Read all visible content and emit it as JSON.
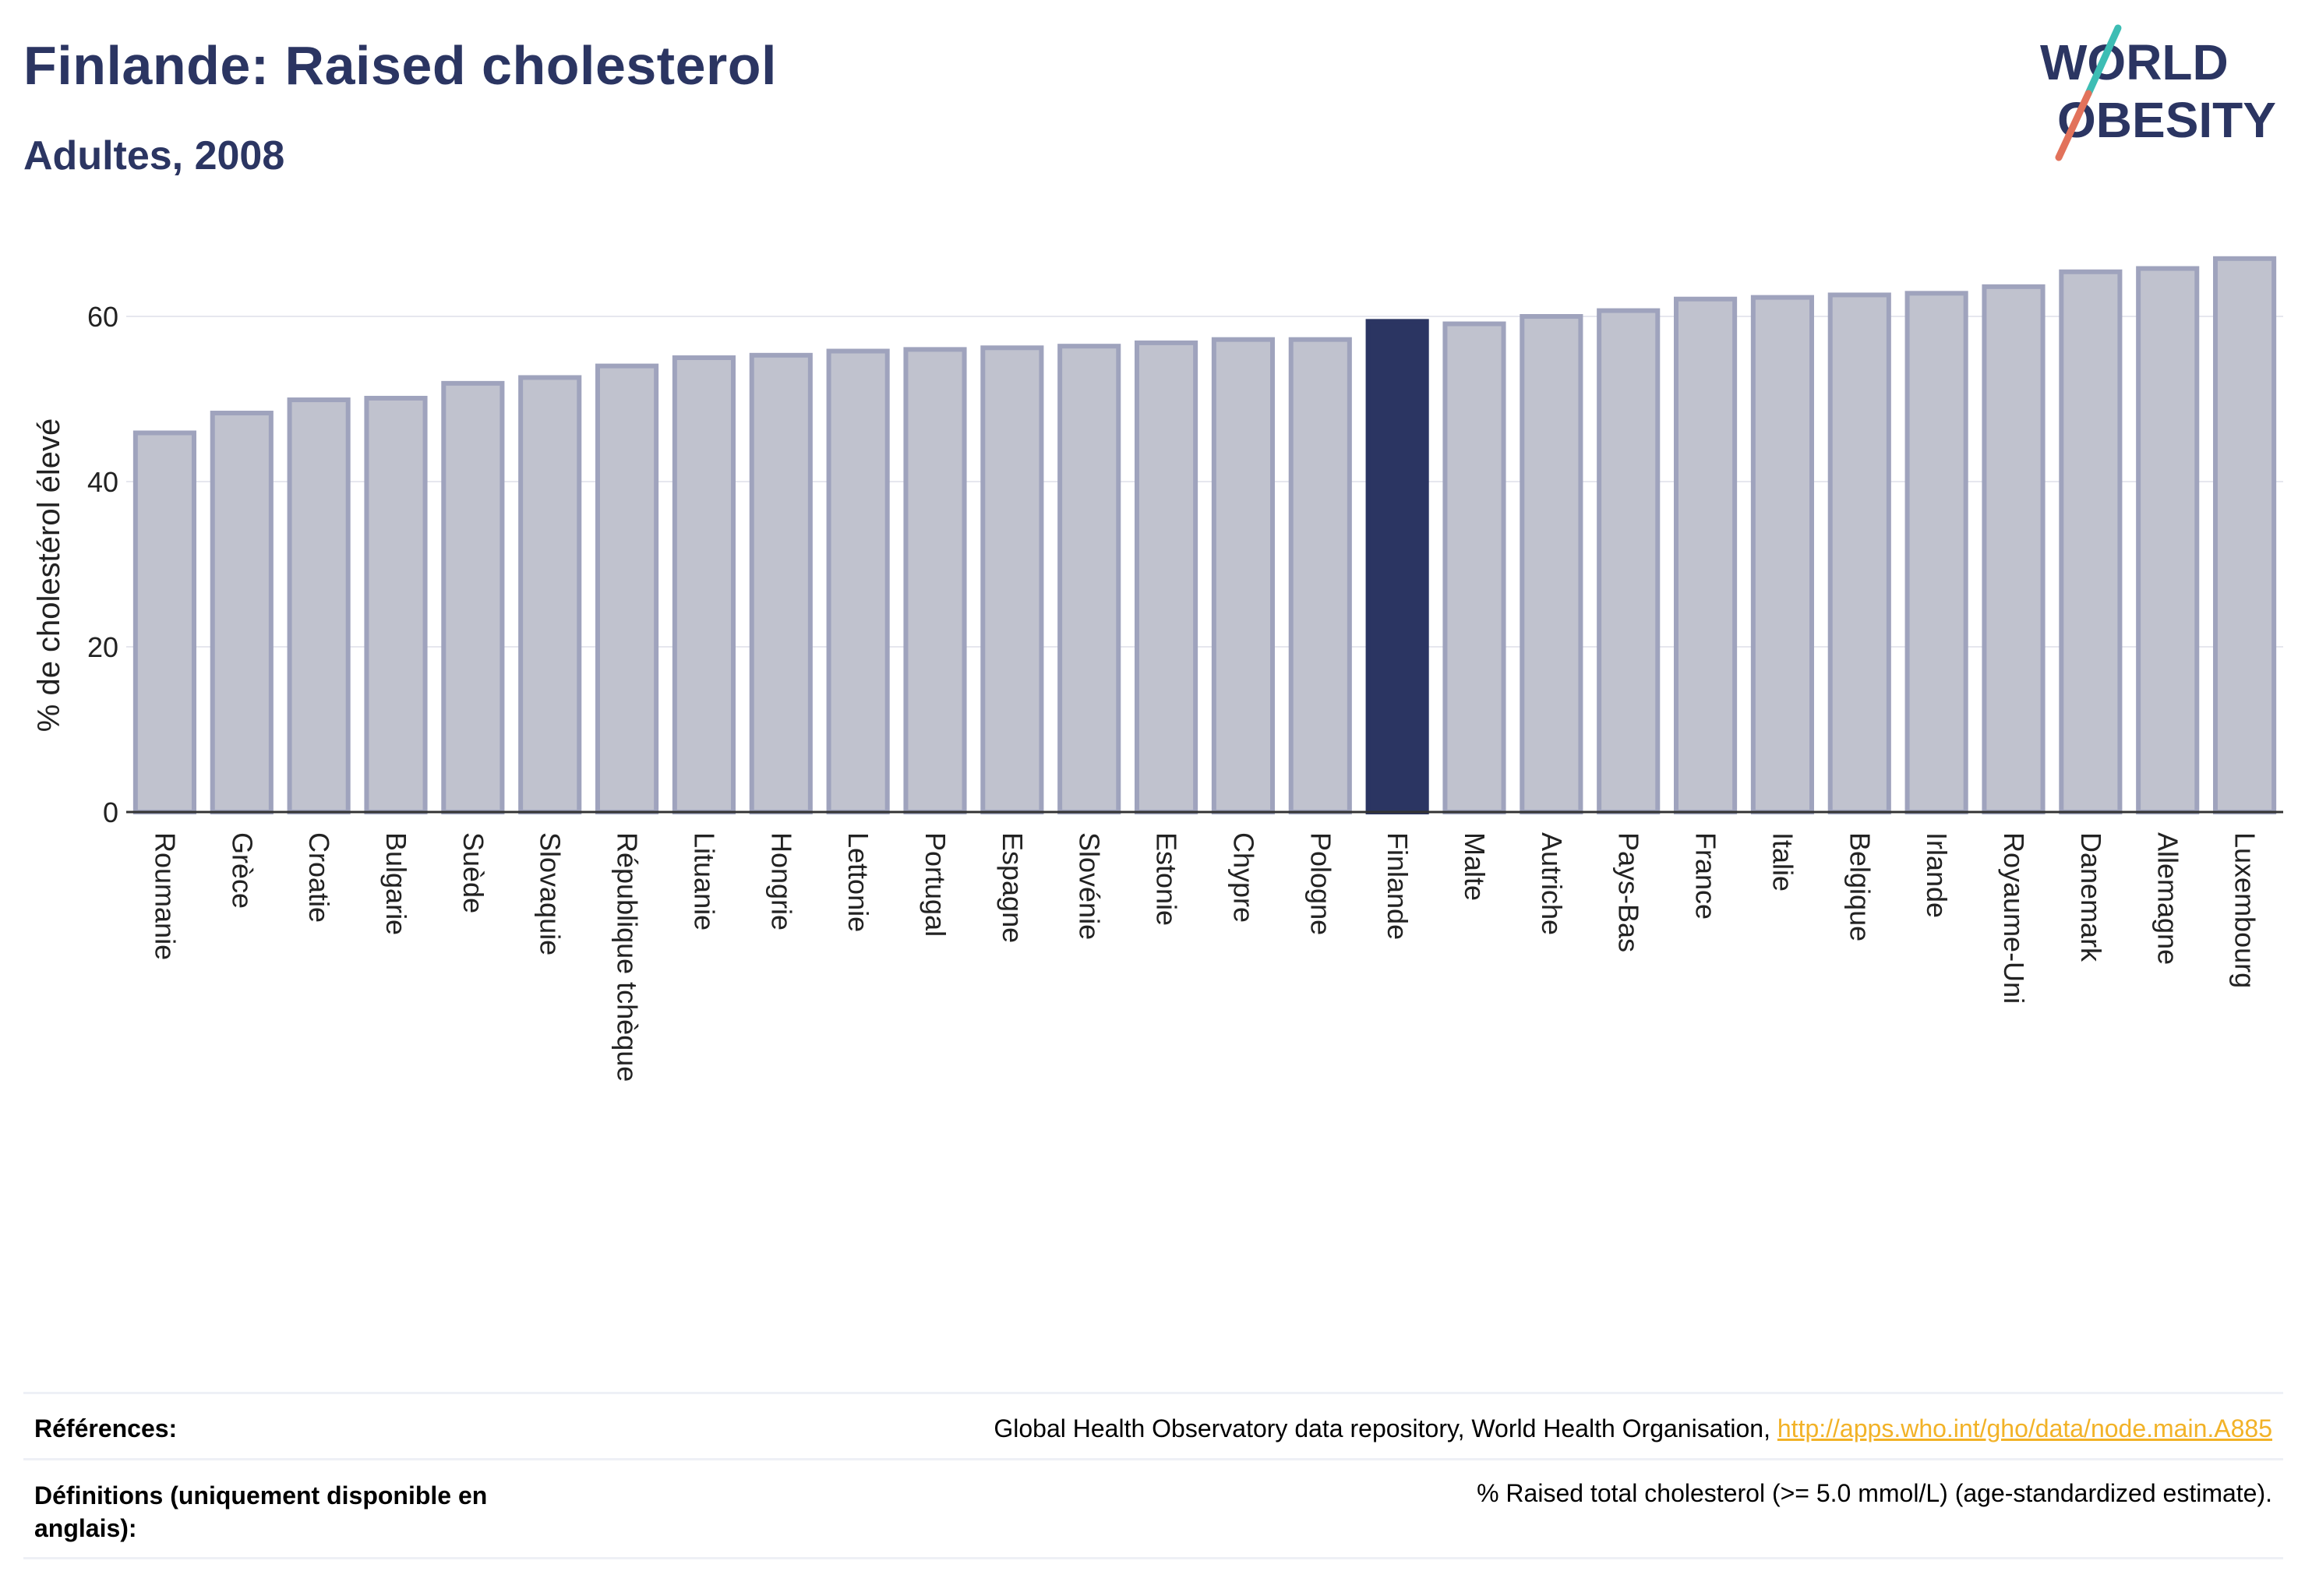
{
  "header": {
    "title": "Finlande: Raised cholesterol",
    "subtitle": "Adultes, 2008"
  },
  "logo": {
    "line1": "WORLD",
    "line2": "OBESITY"
  },
  "chart_data": {
    "type": "bar",
    "title": "Finlande: Raised cholesterol",
    "subtitle": "Adultes, 2008",
    "ylabel": "% de cholestérol élevé",
    "xlabel": "",
    "ylim": [
      0,
      70
    ],
    "yticks": [
      0,
      20,
      40,
      60
    ],
    "grid": true,
    "highlight": "Finlande",
    "categories": [
      "Roumanie",
      "Grèce",
      "Croatie",
      "Bulgarie",
      "Suède",
      "Slovaquie",
      "République tchèque",
      "Lituanie",
      "Hongrie",
      "Lettonie",
      "Portugal",
      "Espagne",
      "Slovénie",
      "Estonie",
      "Chypre",
      "Pologne",
      "Finlande",
      "Malte",
      "Autriche",
      "Pays-Bas",
      "France",
      "Italie",
      "Belgique",
      "Irlande",
      "Royaume-Uni",
      "Danemark",
      "Allemagne",
      "Luxembourg"
    ],
    "values": [
      45.9,
      48.3,
      49.9,
      50.1,
      51.9,
      52.6,
      54.0,
      55.0,
      55.3,
      55.8,
      56.0,
      56.2,
      56.4,
      56.8,
      57.2,
      57.2,
      59.4,
      59.1,
      60.0,
      60.7,
      62.1,
      62.3,
      62.6,
      62.8,
      63.6,
      65.4,
      65.8,
      67.0
    ],
    "colors": {
      "default": "#c0c2ce",
      "default_stroke": "#9fa3bd",
      "highlight": "#2b3562",
      "axis": "#333333",
      "grid": "#e6e7ee"
    }
  },
  "footer": {
    "references_label": "Références:",
    "references_text": "Global Health Observatory data repository, World Health Organisation, ",
    "references_link": "http://apps.who.int/gho/data/node.main.A885",
    "definitions_label_line1": "Définitions (uniquement disponible en",
    "definitions_label_line2": "anglais):",
    "definitions_text": "% Raised total cholesterol (>= 5.0 mmol/L) (age-standardized estimate)."
  }
}
